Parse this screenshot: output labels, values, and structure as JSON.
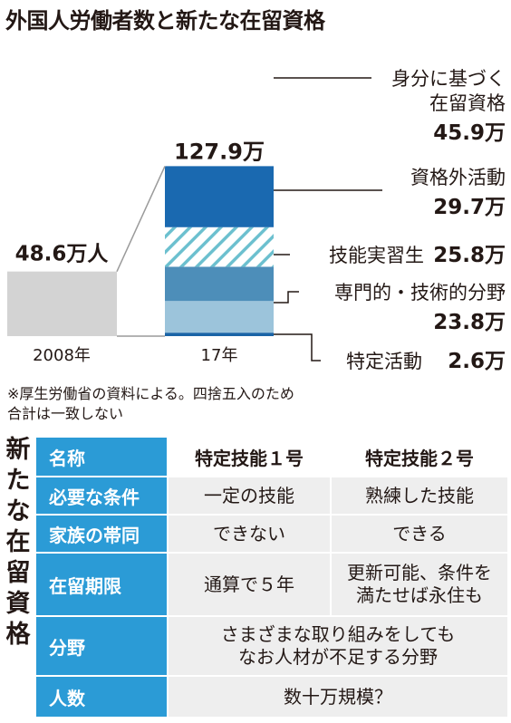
{
  "title": "外国人労働者数と新たな在留資格",
  "chart_data": {
    "type": "bar",
    "categories": [
      "2008年",
      "17年"
    ],
    "bar_2008": {
      "value": 48.6,
      "label": "48.6万人",
      "color": "#d3d3d3"
    },
    "total_2017": {
      "value": 127.9,
      "label": "127.9万"
    },
    "series": [
      {
        "name": "特定活動",
        "value": 2.6,
        "value_label": "2.6万",
        "color": "#1a64a6"
      },
      {
        "name": "専門的・技術的分野",
        "value": 23.8,
        "value_label": "23.8万",
        "color": "#9cc4db"
      },
      {
        "name": "技能実習生",
        "value": 25.8,
        "value_label": "25.8万",
        "color": "#4d8eb9"
      },
      {
        "name": "資格外活動",
        "value": 29.7,
        "value_label": "29.7万",
        "color": "#6cc0cf",
        "pattern": "hatched"
      },
      {
        "name": "身分に基づく在留資格",
        "name_lines": [
          "身分に基づく",
          "在留資格"
        ],
        "value": 45.9,
        "value_label": "45.9万",
        "color": "#1a69b0"
      }
    ]
  },
  "notes": [
    "※厚生労働省の資料による。四捨五入のため",
    "合計は一致しない"
  ],
  "table": {
    "side_title": [
      "新",
      "た",
      "な",
      "在",
      "留",
      "資",
      "格"
    ],
    "header": [
      "名称",
      "特定技能１号",
      "特定技能２号"
    ],
    "rows": [
      {
        "label": "必要な条件",
        "cells": [
          "一定の技能",
          "熟練した技能"
        ]
      },
      {
        "label": "家族の帯同",
        "cells": [
          "できない",
          "できる"
        ]
      },
      {
        "label": "在留期限",
        "cells": [
          "通算で５年",
          "更新可能、条件を\n満たせば永住も"
        ]
      },
      {
        "label": "分野",
        "merged": "さまざまな取り組みをしても\nなお人材が不足する分野"
      },
      {
        "label": "人数",
        "merged": "数十万規模？"
      }
    ]
  }
}
